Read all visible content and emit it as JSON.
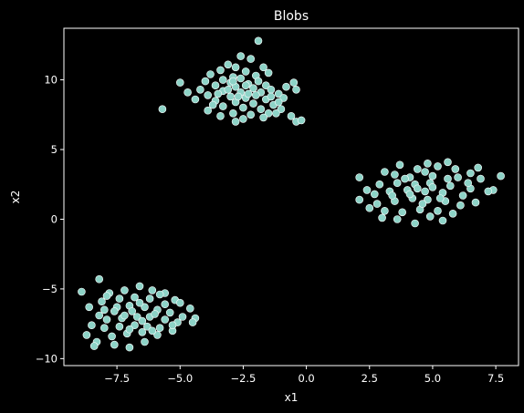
{
  "chart_data": {
    "type": "scatter",
    "title": "Blobs",
    "xlabel": "x1",
    "ylabel": "x2",
    "xlim": [
      -9.6,
      8.4
    ],
    "ylim": [
      -10.5,
      13.7
    ],
    "xticks": [
      -7.5,
      -5.0,
      -2.5,
      0.0,
      2.5,
      5.0,
      7.5
    ],
    "xtick_labels": [
      "−7.5",
      "−5.0",
      "−2.5",
      "0.0",
      "2.5",
      "5.0",
      "7.5"
    ],
    "yticks": [
      -10,
      -5,
      0,
      5,
      10
    ],
    "ytick_labels": [
      "−10",
      "−5",
      "0",
      "5",
      "10"
    ],
    "grid": false,
    "series": [
      {
        "color": "#8dd3c7",
        "points": [
          [
            -1.9,
            12.8
          ],
          [
            -2.6,
            11.7
          ],
          [
            -2.2,
            11.5
          ],
          [
            -3.1,
            11.1
          ],
          [
            -2.8,
            10.9
          ],
          [
            -3.4,
            10.7
          ],
          [
            -1.7,
            10.9
          ],
          [
            -2.4,
            10.6
          ],
          [
            -3.8,
            10.4
          ],
          [
            -2.0,
            10.3
          ],
          [
            -1.5,
            10.5
          ],
          [
            -2.9,
            10.2
          ],
          [
            -3.3,
            10.0
          ],
          [
            -2.6,
            10.1
          ],
          [
            -1.9,
            9.9
          ],
          [
            -4.0,
            9.9
          ],
          [
            -3.0,
            9.8
          ],
          [
            -2.3,
            9.7
          ],
          [
            -1.6,
            9.6
          ],
          [
            -0.5,
            9.8
          ],
          [
            -0.8,
            9.5
          ],
          [
            -3.6,
            9.6
          ],
          [
            -2.8,
            9.5
          ],
          [
            -2.1,
            9.4
          ],
          [
            -1.4,
            9.3
          ],
          [
            -4.2,
            9.3
          ],
          [
            -3.3,
            9.2
          ],
          [
            -2.6,
            9.1
          ],
          [
            -1.8,
            9.1
          ],
          [
            -1.1,
            9.0
          ],
          [
            -0.4,
            9.3
          ],
          [
            -4.7,
            9.1
          ],
          [
            -3.9,
            8.9
          ],
          [
            -3.0,
            8.8
          ],
          [
            -2.4,
            8.7
          ],
          [
            -1.6,
            8.6
          ],
          [
            -0.9,
            8.7
          ],
          [
            -4.4,
            8.6
          ],
          [
            -3.6,
            8.5
          ],
          [
            -2.8,
            8.4
          ],
          [
            -2.1,
            8.3
          ],
          [
            -1.3,
            8.2
          ],
          [
            -3.3,
            8.1
          ],
          [
            -2.5,
            8.0
          ],
          [
            -1.8,
            7.9
          ],
          [
            -1.0,
            7.9
          ],
          [
            -3.9,
            7.8
          ],
          [
            -2.9,
            7.6
          ],
          [
            -2.2,
            7.5
          ],
          [
            -1.5,
            7.6
          ],
          [
            -3.4,
            7.4
          ],
          [
            -2.5,
            7.2
          ],
          [
            -1.7,
            7.3
          ],
          [
            -2.8,
            7.0
          ],
          [
            -0.6,
            7.4
          ],
          [
            -0.4,
            7.0
          ],
          [
            -0.2,
            7.1
          ],
          [
            -1.2,
            7.6
          ],
          [
            -5.0,
            9.8
          ],
          [
            -5.7,
            7.9
          ],
          [
            -2.3,
            9.0
          ],
          [
            -2.7,
            8.8
          ],
          [
            -3.1,
            9.3
          ],
          [
            -2.0,
            8.9
          ],
          [
            -2.4,
            9.6
          ],
          [
            -3.5,
            9.0
          ],
          [
            -1.4,
            8.8
          ],
          [
            -2.9,
            9.9
          ],
          [
            -3.7,
            8.2
          ],
          [
            -1.1,
            8.4
          ],
          [
            7.7,
            3.1
          ],
          [
            6.8,
            3.7
          ],
          [
            6.5,
            3.3
          ],
          [
            5.6,
            4.1
          ],
          [
            5.2,
            3.8
          ],
          [
            4.8,
            4.0
          ],
          [
            5.9,
            3.6
          ],
          [
            4.4,
            3.6
          ],
          [
            3.7,
            3.9
          ],
          [
            3.1,
            3.4
          ],
          [
            2.1,
            3.0
          ],
          [
            3.5,
            3.2
          ],
          [
            4.1,
            3.0
          ],
          [
            5.0,
            3.1
          ],
          [
            6.0,
            3.0
          ],
          [
            6.9,
            2.9
          ],
          [
            7.4,
            2.1
          ],
          [
            7.2,
            2.0
          ],
          [
            6.5,
            2.2
          ],
          [
            5.7,
            2.4
          ],
          [
            4.9,
            2.6
          ],
          [
            4.3,
            2.5
          ],
          [
            3.6,
            2.6
          ],
          [
            2.9,
            2.5
          ],
          [
            2.4,
            2.1
          ],
          [
            2.1,
            1.4
          ],
          [
            2.7,
            1.8
          ],
          [
            3.3,
            2.0
          ],
          [
            4.0,
            2.1
          ],
          [
            4.7,
            2.0
          ],
          [
            5.4,
            1.9
          ],
          [
            6.2,
            1.7
          ],
          [
            6.7,
            1.2
          ],
          [
            6.1,
            1.0
          ],
          [
            5.5,
            1.3
          ],
          [
            4.8,
            1.4
          ],
          [
            4.2,
            1.5
          ],
          [
            3.5,
            1.3
          ],
          [
            2.8,
            1.1
          ],
          [
            2.5,
            0.8
          ],
          [
            3.1,
            0.6
          ],
          [
            3.8,
            0.5
          ],
          [
            4.5,
            0.7
          ],
          [
            5.2,
            0.6
          ],
          [
            5.8,
            0.4
          ],
          [
            5.4,
            -0.1
          ],
          [
            4.9,
            0.2
          ],
          [
            4.3,
            -0.3
          ],
          [
            3.6,
            0.0
          ],
          [
            3.0,
            0.1
          ],
          [
            4.6,
            1.1
          ],
          [
            5.0,
            2.3
          ],
          [
            4.1,
            1.8
          ],
          [
            5.6,
            2.9
          ],
          [
            3.9,
            2.9
          ],
          [
            5.3,
            1.5
          ],
          [
            4.4,
            2.2
          ],
          [
            6.4,
            2.6
          ],
          [
            3.4,
            1.7
          ],
          [
            4.7,
            3.4
          ],
          [
            -8.9,
            -5.2
          ],
          [
            -8.2,
            -4.3
          ],
          [
            -7.8,
            -5.3
          ],
          [
            -7.2,
            -5.1
          ],
          [
            -6.6,
            -4.8
          ],
          [
            -6.1,
            -5.1
          ],
          [
            -5.6,
            -5.3
          ],
          [
            -5.2,
            -5.8
          ],
          [
            -4.6,
            -6.4
          ],
          [
            -5.0,
            -6.0
          ],
          [
            -5.6,
            -6.1
          ],
          [
            -6.2,
            -5.7
          ],
          [
            -6.8,
            -5.6
          ],
          [
            -7.4,
            -5.7
          ],
          [
            -8.1,
            -5.9
          ],
          [
            -8.6,
            -6.3
          ],
          [
            -8.0,
            -6.5
          ],
          [
            -7.5,
            -6.3
          ],
          [
            -7.0,
            -6.2
          ],
          [
            -6.4,
            -6.3
          ],
          [
            -5.9,
            -6.5
          ],
          [
            -5.4,
            -6.7
          ],
          [
            -4.9,
            -7.0
          ],
          [
            -4.4,
            -7.1
          ],
          [
            -4.5,
            -7.4
          ],
          [
            -5.1,
            -7.4
          ],
          [
            -5.6,
            -7.2
          ],
          [
            -6.2,
            -7.0
          ],
          [
            -6.7,
            -7.0
          ],
          [
            -7.3,
            -7.1
          ],
          [
            -7.9,
            -7.2
          ],
          [
            -8.5,
            -7.6
          ],
          [
            -8.7,
            -8.3
          ],
          [
            -8.0,
            -7.8
          ],
          [
            -7.4,
            -7.7
          ],
          [
            -6.8,
            -7.6
          ],
          [
            -6.3,
            -7.7
          ],
          [
            -5.8,
            -7.8
          ],
          [
            -5.3,
            -8.0
          ],
          [
            -5.9,
            -8.3
          ],
          [
            -6.5,
            -8.1
          ],
          [
            -7.1,
            -8.2
          ],
          [
            -7.7,
            -8.4
          ],
          [
            -8.3,
            -8.8
          ],
          [
            -8.4,
            -9.1
          ],
          [
            -7.6,
            -9.0
          ],
          [
            -7.0,
            -9.2
          ],
          [
            -6.4,
            -8.8
          ],
          [
            -6.9,
            -6.6
          ],
          [
            -7.2,
            -6.9
          ],
          [
            -6.5,
            -7.3
          ],
          [
            -7.6,
            -6.6
          ],
          [
            -6.0,
            -6.8
          ],
          [
            -7.9,
            -5.5
          ],
          [
            -6.6,
            -6.0
          ],
          [
            -5.3,
            -7.6
          ],
          [
            -7.0,
            -7.9
          ],
          [
            -6.1,
            -8.0
          ],
          [
            -8.2,
            -6.9
          ],
          [
            -5.8,
            -5.4
          ]
        ]
      }
    ]
  }
}
